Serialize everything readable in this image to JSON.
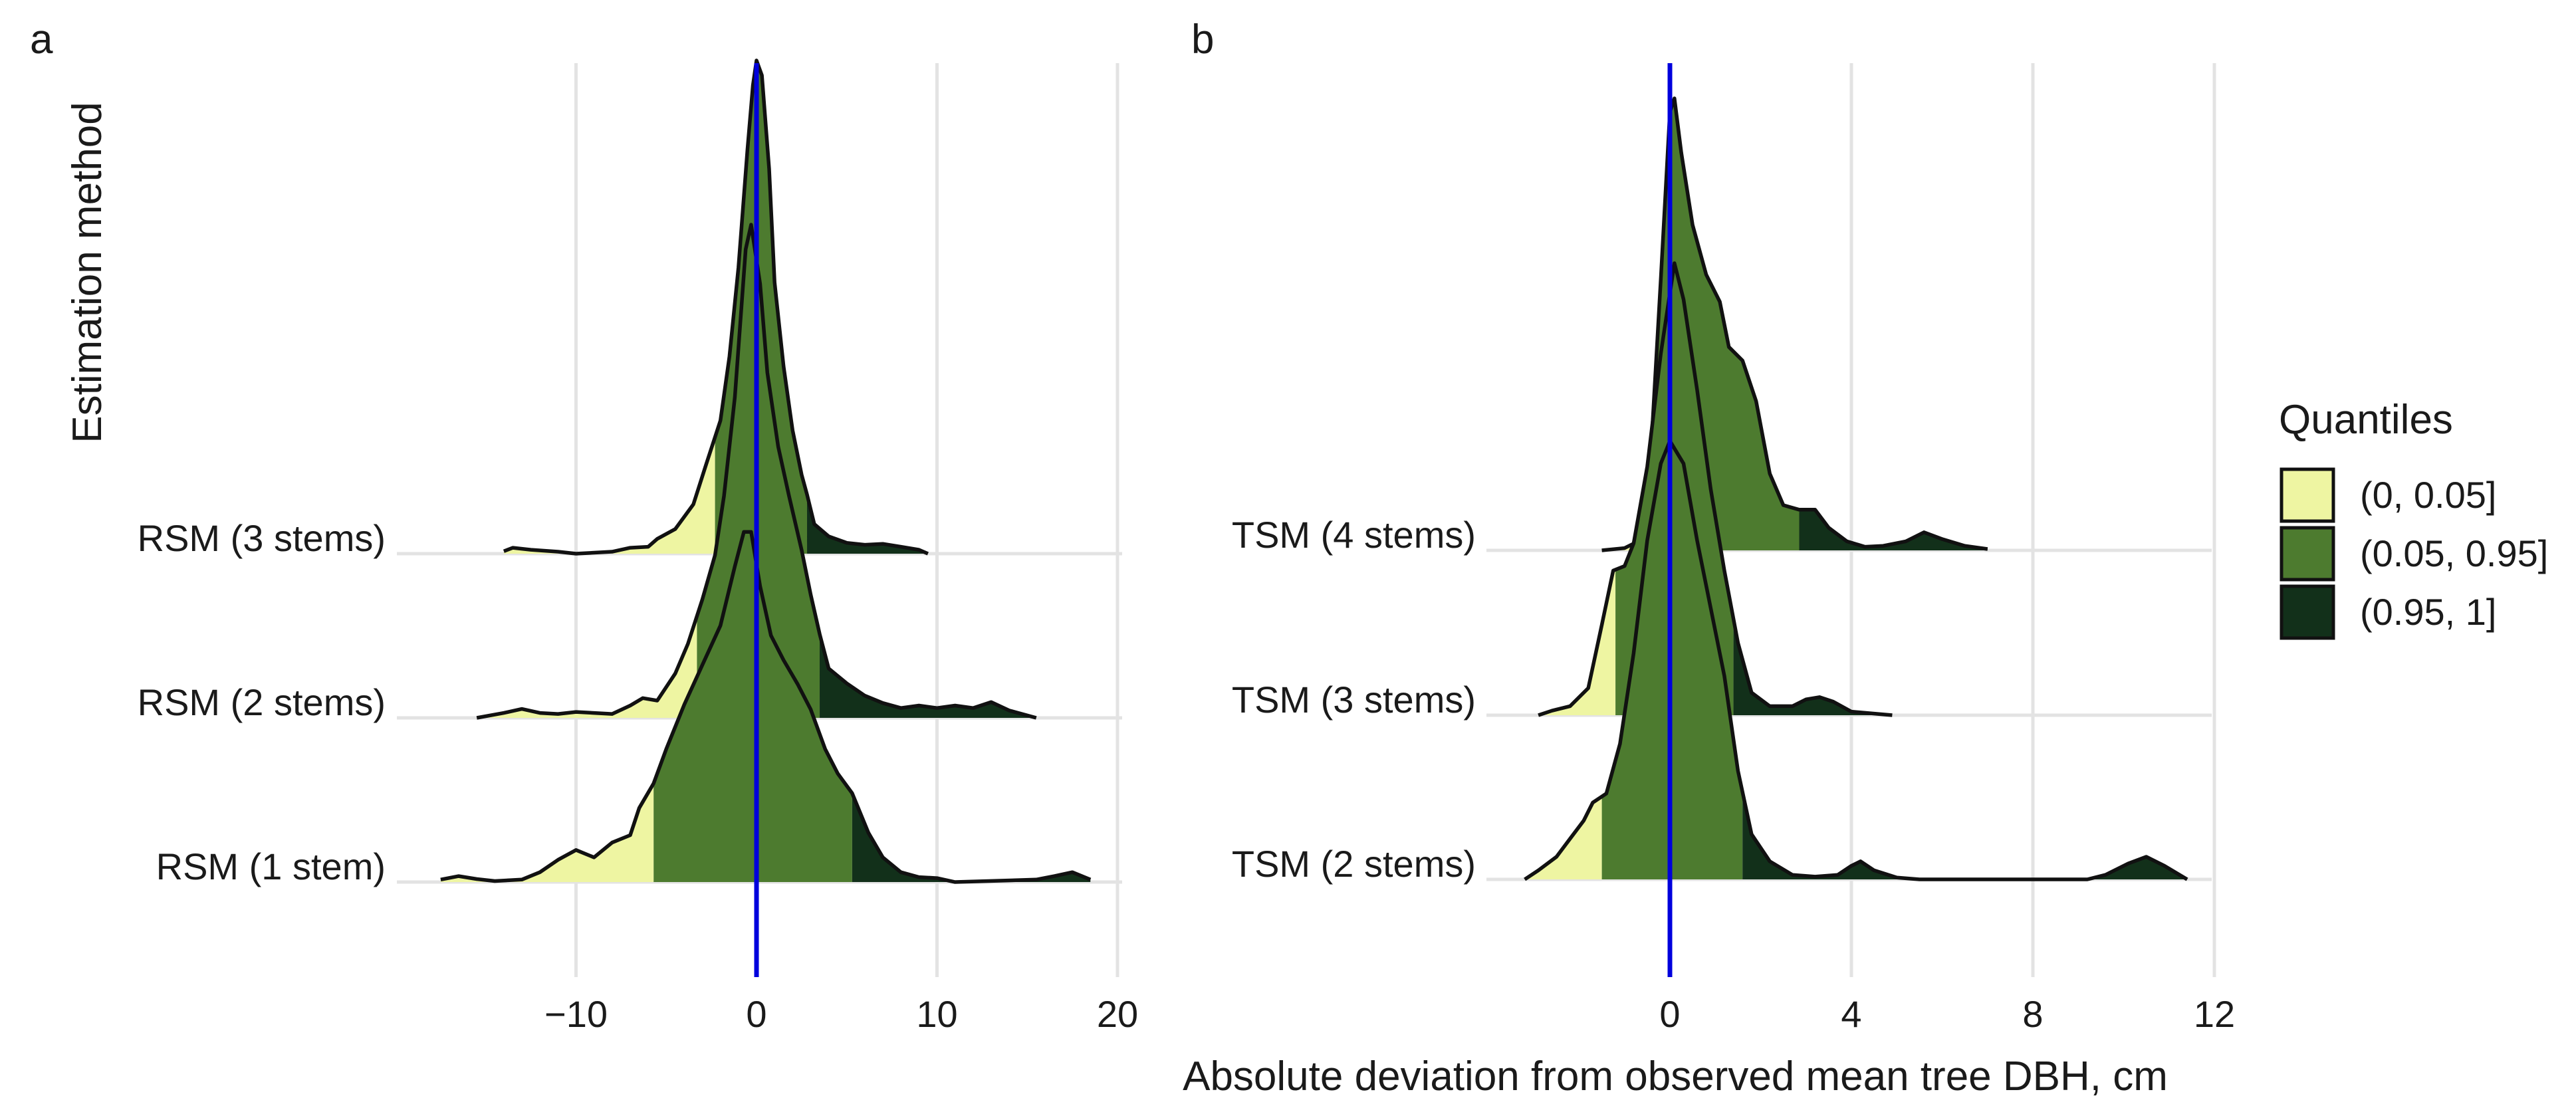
{
  "chart_data": [
    {
      "panel": "a",
      "type": "ridgeline",
      "ylabel": "Estimation method",
      "xlim": [
        -20,
        20
      ],
      "ticks": [
        -10,
        0,
        10,
        20
      ],
      "tick_labels": [
        "−10",
        "0",
        "10",
        "20"
      ],
      "reference_line_x": 0,
      "series": [
        {
          "name": "RSM (3 stems)",
          "q05": -2.3,
          "q95": 2.8,
          "density": [
            [
              -14,
              0.005
            ],
            [
              -13.5,
              0.012
            ],
            [
              -12.5,
              0.008
            ],
            [
              -11,
              0.004
            ],
            [
              -10,
              0
            ],
            [
              -8,
              0.004
            ],
            [
              -7,
              0.012
            ],
            [
              -6,
              0.014
            ],
            [
              -5.5,
              0.03
            ],
            [
              -4.5,
              0.05
            ],
            [
              -3.5,
              0.1
            ],
            [
              -2.8,
              0.18
            ],
            [
              -2,
              0.27
            ],
            [
              -1.5,
              0.4
            ],
            [
              -1,
              0.58
            ],
            [
              -0.5,
              0.82
            ],
            [
              -0.2,
              0.95
            ],
            [
              0,
              1.0
            ],
            [
              0.3,
              0.97
            ],
            [
              0.7,
              0.78
            ],
            [
              1,
              0.55
            ],
            [
              1.5,
              0.38
            ],
            [
              2,
              0.25
            ],
            [
              2.5,
              0.16
            ],
            [
              2.8,
              0.12
            ],
            [
              3.2,
              0.06
            ],
            [
              4,
              0.035
            ],
            [
              5,
              0.022
            ],
            [
              6,
              0.018
            ],
            [
              7,
              0.02
            ],
            [
              8,
              0.014
            ],
            [
              9,
              0.008
            ],
            [
              9.5,
              0
            ]
          ]
        },
        {
          "name": "RSM (2 stems)",
          "q05": -3.3,
          "q95": 3.5,
          "density": [
            [
              -15.5,
              0
            ],
            [
              -14,
              0.01
            ],
            [
              -13,
              0.018
            ],
            [
              -12,
              0.01
            ],
            [
              -11,
              0.008
            ],
            [
              -10,
              0.012
            ],
            [
              -9,
              0.01
            ],
            [
              -8,
              0.008
            ],
            [
              -7,
              0.025
            ],
            [
              -6.3,
              0.04
            ],
            [
              -5.5,
              0.035
            ],
            [
              -4.5,
              0.09
            ],
            [
              -3.8,
              0.15
            ],
            [
              -3,
              0.24
            ],
            [
              -2.3,
              0.33
            ],
            [
              -1.8,
              0.45
            ],
            [
              -1.2,
              0.65
            ],
            [
              -0.6,
              0.95
            ],
            [
              -0.3,
              1.0
            ],
            [
              0.2,
              0.88
            ],
            [
              0.6,
              0.7
            ],
            [
              1.2,
              0.55
            ],
            [
              1.8,
              0.45
            ],
            [
              2.5,
              0.34
            ],
            [
              3,
              0.25
            ],
            [
              3.5,
              0.17
            ],
            [
              4,
              0.1
            ],
            [
              5,
              0.07
            ],
            [
              6,
              0.045
            ],
            [
              7,
              0.03
            ],
            [
              8,
              0.02
            ],
            [
              9,
              0.025
            ],
            [
              10,
              0.02
            ],
            [
              11,
              0.025
            ],
            [
              12,
              0.02
            ],
            [
              13,
              0.032
            ],
            [
              14,
              0.015
            ],
            [
              15.5,
              0
            ]
          ]
        },
        {
          "name": "RSM (1 stem)",
          "q05": -5.7,
          "q95": 5.3,
          "density": [
            [
              -17.5,
              0.005
            ],
            [
              -16.5,
              0.012
            ],
            [
              -15.5,
              0.006
            ],
            [
              -14.5,
              0.002
            ],
            [
              -13,
              0.005
            ],
            [
              -12,
              0.02
            ],
            [
              -11,
              0.045
            ],
            [
              -10,
              0.065
            ],
            [
              -9,
              0.05
            ],
            [
              -8,
              0.08
            ],
            [
              -7,
              0.095
            ],
            [
              -6.5,
              0.15
            ],
            [
              -5.7,
              0.2
            ],
            [
              -5,
              0.27
            ],
            [
              -4,
              0.36
            ],
            [
              -3,
              0.44
            ],
            [
              -2,
              0.52
            ],
            [
              -1.2,
              0.64
            ],
            [
              -0.7,
              0.71
            ],
            [
              -0.3,
              0.71
            ],
            [
              0.2,
              0.6
            ],
            [
              0.8,
              0.5
            ],
            [
              1.5,
              0.45
            ],
            [
              2.3,
              0.4
            ],
            [
              3,
              0.35
            ],
            [
              3.8,
              0.27
            ],
            [
              4.5,
              0.22
            ],
            [
              5.3,
              0.18
            ],
            [
              6.2,
              0.1
            ],
            [
              7,
              0.05
            ],
            [
              8,
              0.02
            ],
            [
              9,
              0.01
            ],
            [
              10,
              0.008
            ],
            [
              11,
              0
            ],
            [
              15.5,
              0.005
            ],
            [
              16.5,
              0.012
            ],
            [
              17.5,
              0.02
            ],
            [
              18.5,
              0.005
            ]
          ]
        }
      ]
    },
    {
      "panel": "b",
      "type": "ridgeline",
      "xlabel": "Absolute deviation from observed mean tree DBH, cm",
      "xlim": [
        -4,
        12
      ],
      "ticks": [
        0,
        4,
        8,
        12
      ],
      "tick_labels": [
        "0",
        "4",
        "8",
        "12"
      ],
      "reference_line_x": 0,
      "series": [
        {
          "name": "TSM (4 stems)",
          "q05": -0.55,
          "q95": 2.85,
          "density": [
            [
              -1.5,
              0
            ],
            [
              -1.0,
              0.005
            ],
            [
              -0.8,
              0.015
            ],
            [
              -0.6,
              0.05
            ],
            [
              -0.4,
              0.25
            ],
            [
              -0.2,
              0.6
            ],
            [
              0,
              0.97
            ],
            [
              0.1,
              1.0
            ],
            [
              0.25,
              0.88
            ],
            [
              0.5,
              0.72
            ],
            [
              0.8,
              0.61
            ],
            [
              1.1,
              0.55
            ],
            [
              1.3,
              0.45
            ],
            [
              1.6,
              0.42
            ],
            [
              1.9,
              0.33
            ],
            [
              2.2,
              0.17
            ],
            [
              2.5,
              0.1
            ],
            [
              2.85,
              0.09
            ],
            [
              3.2,
              0.09
            ],
            [
              3.5,
              0.05
            ],
            [
              3.9,
              0.02
            ],
            [
              4.3,
              0.008
            ],
            [
              4.7,
              0.01
            ],
            [
              5.2,
              0.02
            ],
            [
              5.6,
              0.04
            ],
            [
              6,
              0.025
            ],
            [
              6.5,
              0.01
            ],
            [
              7,
              0.003
            ]
          ]
        },
        {
          "name": "TSM (3 stems)",
          "q05": -1.2,
          "q95": 1.4,
          "density": [
            [
              -2.9,
              0
            ],
            [
              -2.6,
              0.01
            ],
            [
              -2.2,
              0.02
            ],
            [
              -1.8,
              0.06
            ],
            [
              -1.5,
              0.2
            ],
            [
              -1.25,
              0.32
            ],
            [
              -1,
              0.33
            ],
            [
              -0.8,
              0.38
            ],
            [
              -0.5,
              0.55
            ],
            [
              -0.2,
              0.8
            ],
            [
              0.1,
              1.0
            ],
            [
              0.3,
              0.92
            ],
            [
              0.6,
              0.72
            ],
            [
              0.9,
              0.5
            ],
            [
              1.2,
              0.32
            ],
            [
              1.5,
              0.16
            ],
            [
              1.8,
              0.05
            ],
            [
              2.2,
              0.02
            ],
            [
              2.7,
              0.02
            ],
            [
              3,
              0.035
            ],
            [
              3.3,
              0.04
            ],
            [
              3.6,
              0.03
            ],
            [
              4,
              0.008
            ],
            [
              4.9,
              0
            ]
          ]
        },
        {
          "name": "TSM (2 stems)",
          "q05": -1.5,
          "q95": 1.6,
          "density": [
            [
              -3.2,
              0
            ],
            [
              -2.9,
              0.02
            ],
            [
              -2.5,
              0.05
            ],
            [
              -2.2,
              0.09
            ],
            [
              -1.9,
              0.13
            ],
            [
              -1.7,
              0.17
            ],
            [
              -1.4,
              0.19
            ],
            [
              -1.1,
              0.3
            ],
            [
              -0.8,
              0.5
            ],
            [
              -0.5,
              0.75
            ],
            [
              -0.2,
              0.92
            ],
            [
              0,
              0.97
            ],
            [
              0.3,
              0.92
            ],
            [
              0.6,
              0.75
            ],
            [
              0.9,
              0.6
            ],
            [
              1.2,
              0.45
            ],
            [
              1.5,
              0.24
            ],
            [
              1.8,
              0.1
            ],
            [
              2.2,
              0.04
            ],
            [
              2.7,
              0.01
            ],
            [
              3.2,
              0.006
            ],
            [
              3.7,
              0.01
            ],
            [
              4.0,
              0.03
            ],
            [
              4.2,
              0.04
            ],
            [
              4.5,
              0.02
            ],
            [
              5,
              0.004
            ],
            [
              5.5,
              0
            ],
            [
              9.2,
              0
            ],
            [
              9.6,
              0.01
            ],
            [
              10.1,
              0.035
            ],
            [
              10.5,
              0.05
            ],
            [
              10.9,
              0.03
            ],
            [
              11.4,
              0
            ]
          ]
        }
      ]
    }
  ],
  "panel_labels": [
    "a",
    "b"
  ],
  "legend": {
    "title": "Quantiles",
    "entries": [
      {
        "label": "(0, 0.05]",
        "color": "#eef5a2"
      },
      {
        "label": "(0.05, 0.95]",
        "color": "#4d7b2f"
      },
      {
        "label": "(0.95, 1]",
        "color": "#12301a"
      }
    ]
  },
  "colors": {
    "reference_line": "#0000dd",
    "outline": "#111111",
    "grid": "#e3e3e3"
  }
}
